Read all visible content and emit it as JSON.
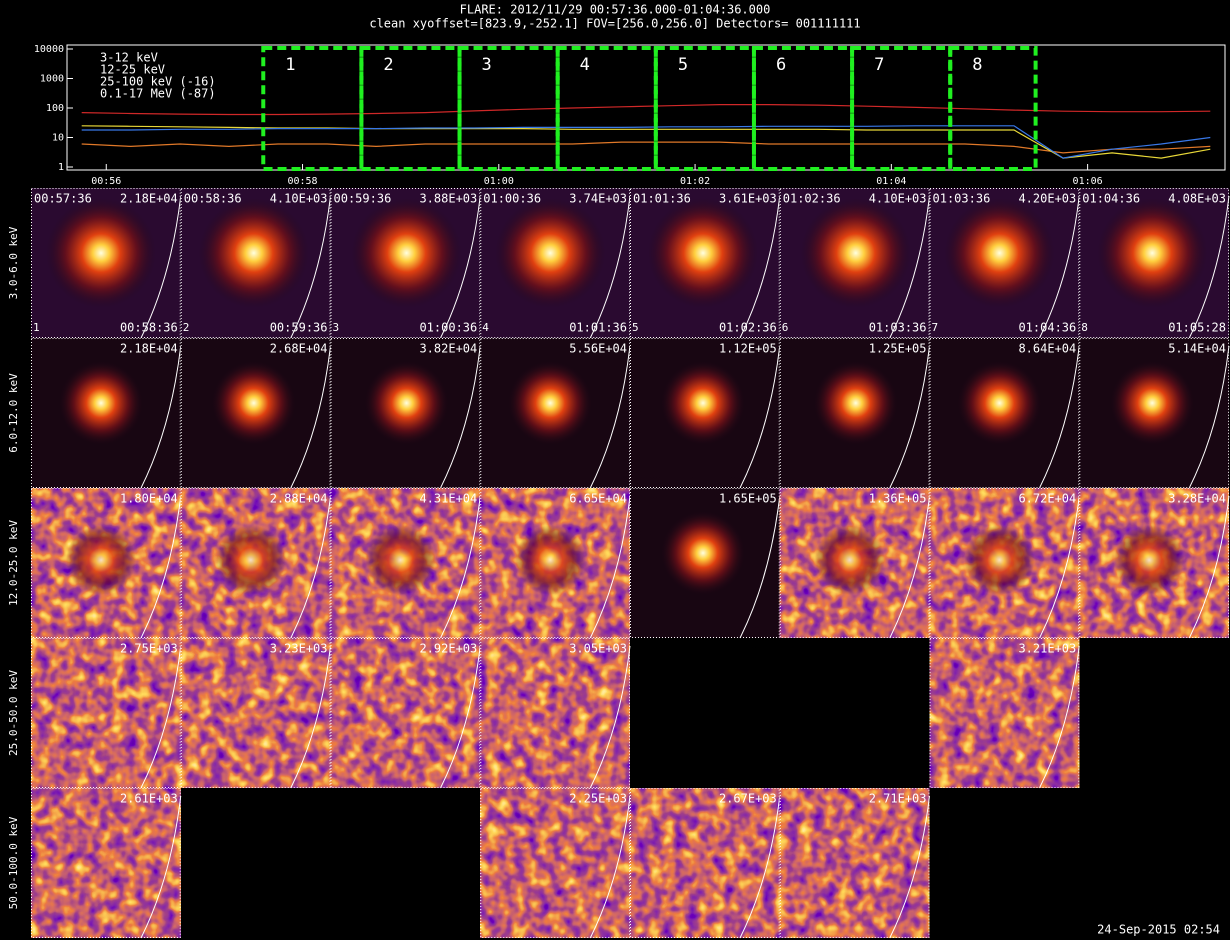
{
  "chart_data": {
    "type": "line",
    "title": "FLARE: 2012/11/29 00:57:36.000-01:04:36.000",
    "subtitle": "clean   xyoffset=[823.9,-252.1]   FOV=[256.0,256.0]   Detectors= 001111111",
    "x": [
      55.75,
      56.25,
      56.75,
      57.25,
      57.75,
      58.25,
      58.75,
      59.25,
      59.75,
      60.25,
      60.75,
      61.25,
      61.75,
      62.25,
      62.75,
      63.25,
      63.75,
      64.25,
      64.75,
      65.25,
      65.75,
      66.25,
      66.75,
      67.25
    ],
    "series": [
      {
        "name": "3-12 keV",
        "color": "#d02828",
        "values": [
          70,
          65,
          62,
          60,
          60,
          62,
          65,
          70,
          80,
          90,
          100,
          110,
          120,
          130,
          130,
          125,
          115,
          105,
          95,
          85,
          78,
          75,
          75,
          78
        ]
      },
      {
        "name": "12-25 keV",
        "color": "#e07828",
        "values": [
          6,
          5,
          6,
          5,
          6,
          6,
          5,
          6,
          6,
          6,
          6,
          7,
          7,
          7,
          6,
          6,
          6,
          6,
          6,
          5,
          3,
          4,
          4,
          5
        ]
      },
      {
        "name": "25-100 keV (-16)",
        "color": "#e8d838",
        "values": [
          25,
          24,
          23,
          22,
          21,
          21,
          20,
          20,
          20,
          20,
          19,
          19,
          19,
          19,
          19,
          19,
          18,
          18,
          18,
          18,
          2,
          3,
          2,
          4
        ]
      },
      {
        "name": "0.1-17 MeV (-87)",
        "color": "#3878e8",
        "values": [
          18,
          18,
          19,
          19,
          20,
          20,
          20,
          21,
          21,
          22,
          22,
          22,
          23,
          23,
          24,
          24,
          24,
          25,
          25,
          25,
          2,
          4,
          6,
          10
        ]
      }
    ],
    "xlim": [
      55.6,
      67.4
    ],
    "xticks": [
      {
        "value": 56,
        "label": "00:56"
      },
      {
        "value": 58,
        "label": "00:58"
      },
      {
        "value": 60,
        "label": "01:00"
      },
      {
        "value": 62,
        "label": "01:02"
      },
      {
        "value": 64,
        "label": "01:04"
      },
      {
        "value": 66,
        "label": "01:06"
      }
    ],
    "ylim": [
      1,
      10000
    ],
    "yticks": [
      1,
      10,
      100,
      1000,
      10000
    ],
    "log_y": true,
    "intervals": [
      {
        "label": "1",
        "start": 57.6,
        "end": 58.6
      },
      {
        "label": "2",
        "start": 58.6,
        "end": 59.6
      },
      {
        "label": "3",
        "start": 59.6,
        "end": 60.6
      },
      {
        "label": "4",
        "start": 60.6,
        "end": 61.6
      },
      {
        "label": "5",
        "start": 61.6,
        "end": 62.6
      },
      {
        "label": "6",
        "start": 62.6,
        "end": 63.6
      },
      {
        "label": "7",
        "start": 63.6,
        "end": 64.6
      },
      {
        "label": "8",
        "start": 64.6,
        "end": 65.47
      }
    ],
    "interval_color": "#20f020"
  },
  "image_grid": {
    "energy_bands": [
      "3.0-6.0 keV",
      "6.0-12.0 keV",
      "12.0-25.0 keV",
      "25.0-50.0 keV",
      "50.0-100.0 keV"
    ],
    "time_starts": [
      "00:57:36",
      "00:58:36",
      "00:59:36",
      "01:00:36",
      "01:01:36",
      "01:02:36",
      "01:03:36",
      "01:04:36"
    ],
    "time_ends": [
      "00:58:36",
      "00:59:36",
      "01:00:36",
      "01:01:36",
      "01:02:36",
      "01:03:36",
      "01:04:36",
      "01:05:28"
    ],
    "maxima": [
      [
        "2.18E+04",
        "4.10E+03",
        "3.88E+03",
        "3.74E+03",
        "3.61E+03",
        "4.10E+03",
        "4.20E+03",
        "4.08E+03"
      ],
      [
        "2.18E+04",
        "2.68E+04",
        "3.82E+04",
        "5.56E+04",
        "1.12E+05",
        "1.25E+05",
        "8.64E+04",
        "5.14E+04"
      ],
      [
        "1.80E+04",
        "2.88E+04",
        "4.31E+04",
        "6.65E+04",
        "1.65E+05",
        "1.36E+05",
        "6.72E+04",
        "3.28E+04"
      ],
      [
        "2.75E+03",
        "3.23E+03",
        "2.92E+03",
        "3.05E+03",
        null,
        null,
        "3.21E+03",
        null
      ],
      [
        "2.61E+03",
        null,
        null,
        "2.25E+03",
        "2.67E+03",
        "2.71E+03",
        null,
        null
      ]
    ]
  },
  "footer": "24-Sep-2015 02:54"
}
